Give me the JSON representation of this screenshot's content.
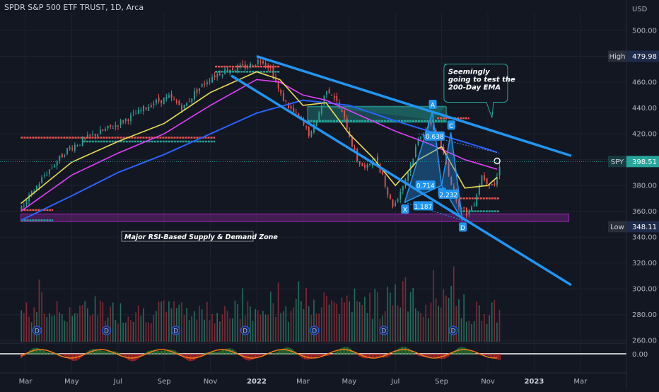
{
  "header": {
    "symbol_title": "SPDR S&P 500 ETF TRUST, 1D, Arca"
  },
  "axis": {
    "currency": "USD"
  },
  "chart_data": {
    "type": "candlestick",
    "title": "SPDR S&P 500 ETF TRUST, 1D, Arca",
    "yaxis": {
      "unit": "USD",
      "ticks": [
        500,
        480,
        460,
        440,
        420,
        400,
        380,
        360,
        340,
        320,
        300,
        280,
        260
      ],
      "tick_labels": [
        "500.00",
        "480.00",
        "460.00",
        "440.00",
        "420.00",
        "400.00",
        "380.00",
        "360.00",
        "340.00",
        "320.00",
        "300.00",
        "280.00",
        "260.00"
      ],
      "range": [
        255,
        512
      ]
    },
    "xaxis": {
      "tick_labels": [
        "Mar",
        "May",
        "Jul",
        "Sep",
        "Nov",
        "2022",
        "Mar",
        "May",
        "Jul",
        "Sep",
        "Nov",
        "2023",
        "Mar"
      ],
      "bold": [
        "2022",
        "2023"
      ],
      "month_range": [
        0,
        25.5
      ]
    },
    "price_path": [
      {
        "m": -0.2,
        "p": 362
      },
      {
        "m": 0.8,
        "p": 388
      },
      {
        "m": 1.8,
        "p": 408
      },
      {
        "m": 2.8,
        "p": 418
      },
      {
        "m": 3.8,
        "p": 426
      },
      {
        "m": 4.8,
        "p": 436
      },
      {
        "m": 5.5,
        "p": 444
      },
      {
        "m": 6.2,
        "p": 448
      },
      {
        "m": 6.8,
        "p": 440
      },
      {
        "m": 7.3,
        "p": 452
      },
      {
        "m": 8.0,
        "p": 464
      },
      {
        "m": 8.7,
        "p": 470
      },
      {
        "m": 9.6,
        "p": 472
      },
      {
        "m": 10.2,
        "p": 478
      },
      {
        "m": 10.6,
        "p": 470
      },
      {
        "m": 11.0,
        "p": 450
      },
      {
        "m": 11.4,
        "p": 440
      },
      {
        "m": 11.9,
        "p": 430
      },
      {
        "m": 12.3,
        "p": 418
      },
      {
        "m": 12.7,
        "p": 438
      },
      {
        "m": 13.0,
        "p": 455
      },
      {
        "m": 13.3,
        "p": 450
      },
      {
        "m": 13.8,
        "p": 430
      },
      {
        "m": 14.3,
        "p": 400
      },
      {
        "m": 14.7,
        "p": 392
      },
      {
        "m": 15.0,
        "p": 402
      },
      {
        "m": 15.4,
        "p": 390
      },
      {
        "m": 15.7,
        "p": 370
      },
      {
        "m": 15.9,
        "p": 364
      },
      {
        "m": 16.3,
        "p": 380
      },
      {
        "m": 16.7,
        "p": 400
      },
      {
        "m": 17.0,
        "p": 418
      },
      {
        "m": 17.5,
        "p": 428
      },
      {
        "m": 17.9,
        "p": 412
      },
      {
        "m": 18.2,
        "p": 395
      },
      {
        "m": 18.5,
        "p": 375
      },
      {
        "m": 18.8,
        "p": 362
      },
      {
        "m": 19.1,
        "p": 358
      },
      {
        "m": 19.4,
        "p": 368
      },
      {
        "m": 19.7,
        "p": 388
      },
      {
        "m": 20.0,
        "p": 382
      },
      {
        "m": 20.3,
        "p": 380
      },
      {
        "m": 20.5,
        "p": 398
      }
    ],
    "series": [
      {
        "name": "",
        "kind": "ema-blue",
        "color": "#2962ff",
        "points": [
          {
            "m": -0.2,
            "p": 353
          },
          {
            "m": 2,
            "p": 372
          },
          {
            "m": 4,
            "p": 390
          },
          {
            "m": 6,
            "p": 404
          },
          {
            "m": 8,
            "p": 420
          },
          {
            "m": 10,
            "p": 436
          },
          {
            "m": 12,
            "p": 446
          },
          {
            "m": 14,
            "p": 442
          },
          {
            "m": 16,
            "p": 430
          },
          {
            "m": 18,
            "p": 419
          },
          {
            "m": 20,
            "p": 408
          },
          {
            "m": 20.5,
            "p": 405
          }
        ]
      },
      {
        "name": "",
        "kind": "ema-magenta",
        "color": "#e040fb",
        "points": [
          {
            "m": -0.2,
            "p": 360
          },
          {
            "m": 2,
            "p": 388
          },
          {
            "m": 4,
            "p": 405
          },
          {
            "m": 6,
            "p": 420
          },
          {
            "m": 8,
            "p": 442
          },
          {
            "m": 10,
            "p": 462
          },
          {
            "m": 11,
            "p": 460
          },
          {
            "m": 12,
            "p": 450
          },
          {
            "m": 13,
            "p": 446
          },
          {
            "m": 14,
            "p": 438
          },
          {
            "m": 16,
            "p": 422
          },
          {
            "m": 17.5,
            "p": 412
          },
          {
            "m": 19,
            "p": 400
          },
          {
            "m": 20.5,
            "p": 392
          }
        ]
      },
      {
        "name": "",
        "kind": "ema-yellow",
        "color": "#e8dc56",
        "points": [
          {
            "m": -0.2,
            "p": 366
          },
          {
            "m": 2,
            "p": 398
          },
          {
            "m": 4,
            "p": 414
          },
          {
            "m": 6,
            "p": 428
          },
          {
            "m": 8,
            "p": 452
          },
          {
            "m": 10,
            "p": 468
          },
          {
            "m": 11,
            "p": 462
          },
          {
            "m": 12,
            "p": 442
          },
          {
            "m": 13,
            "p": 444
          },
          {
            "m": 14,
            "p": 420
          },
          {
            "m": 15,
            "p": 402
          },
          {
            "m": 16,
            "p": 380
          },
          {
            "m": 17,
            "p": 400
          },
          {
            "m": 18,
            "p": 410
          },
          {
            "m": 19,
            "p": 378
          },
          {
            "m": 20,
            "p": 380
          },
          {
            "m": 20.5,
            "p": 388
          }
        ]
      }
    ],
    "channel": [
      {
        "name": "upper-trendline",
        "from": {
          "m": 10,
          "p": 480
        },
        "to": {
          "m": 23.6,
          "p": 403
        }
      },
      {
        "name": "lower-trendline",
        "from": {
          "m": 8.9,
          "p": 465
        },
        "to": {
          "m": 23.6,
          "p": 303
        }
      }
    ],
    "zones": [
      {
        "name": "supply-demand-zone",
        "color": "#9c27b0",
        "from_m": -0.2,
        "to_m": 23.5,
        "top": 358,
        "bottom": 352
      },
      {
        "name": "upper-resistance-zone",
        "color": "#26a69a",
        "from_m": 12.2,
        "to_m": 18.2,
        "top": 441,
        "bottom": 429
      }
    ],
    "pattern": {
      "points": [
        {
          "label": "X",
          "m": 16.4,
          "p": 367
        },
        {
          "label": "A",
          "m": 17.6,
          "p": 437
        },
        {
          "label": "B",
          "m": 18.0,
          "p": 380
        },
        {
          "label": "C",
          "m": 18.4,
          "p": 421
        },
        {
          "label": "D",
          "m": 18.9,
          "p": 353
        }
      ],
      "ratios": [
        {
          "label": "0.714",
          "m": 17.3,
          "p": 380
        },
        {
          "label": "0.638",
          "m": 17.7,
          "p": 418
        },
        {
          "label": "2.232",
          "m": 18.3,
          "p": 373
        },
        {
          "label": "1.187",
          "m": 17.2,
          "p": 364
        }
      ]
    },
    "annotations": [
      {
        "text": "Seemingly going to test the 200-Day EMA",
        "lines": [
          "Seemingly",
          "going to test the",
          "200-Day EMA"
        ]
      },
      {
        "text": "Major RSI-Based Supply & Demand Zone"
      }
    ],
    "markers": [
      {
        "label": "High",
        "value": "479.98",
        "p": 480
      },
      {
        "label": "SPY",
        "value": "398.51",
        "p": 398.51
      },
      {
        "label": "Low",
        "value": "348.11",
        "p": 348.11
      }
    ],
    "oscillator": {
      "zero_label": "0.00"
    },
    "dividend_marker": "D",
    "dividend_months": [
      0.5,
      3.5,
      6.5,
      9.5,
      12.5,
      15.5,
      18.5
    ]
  }
}
